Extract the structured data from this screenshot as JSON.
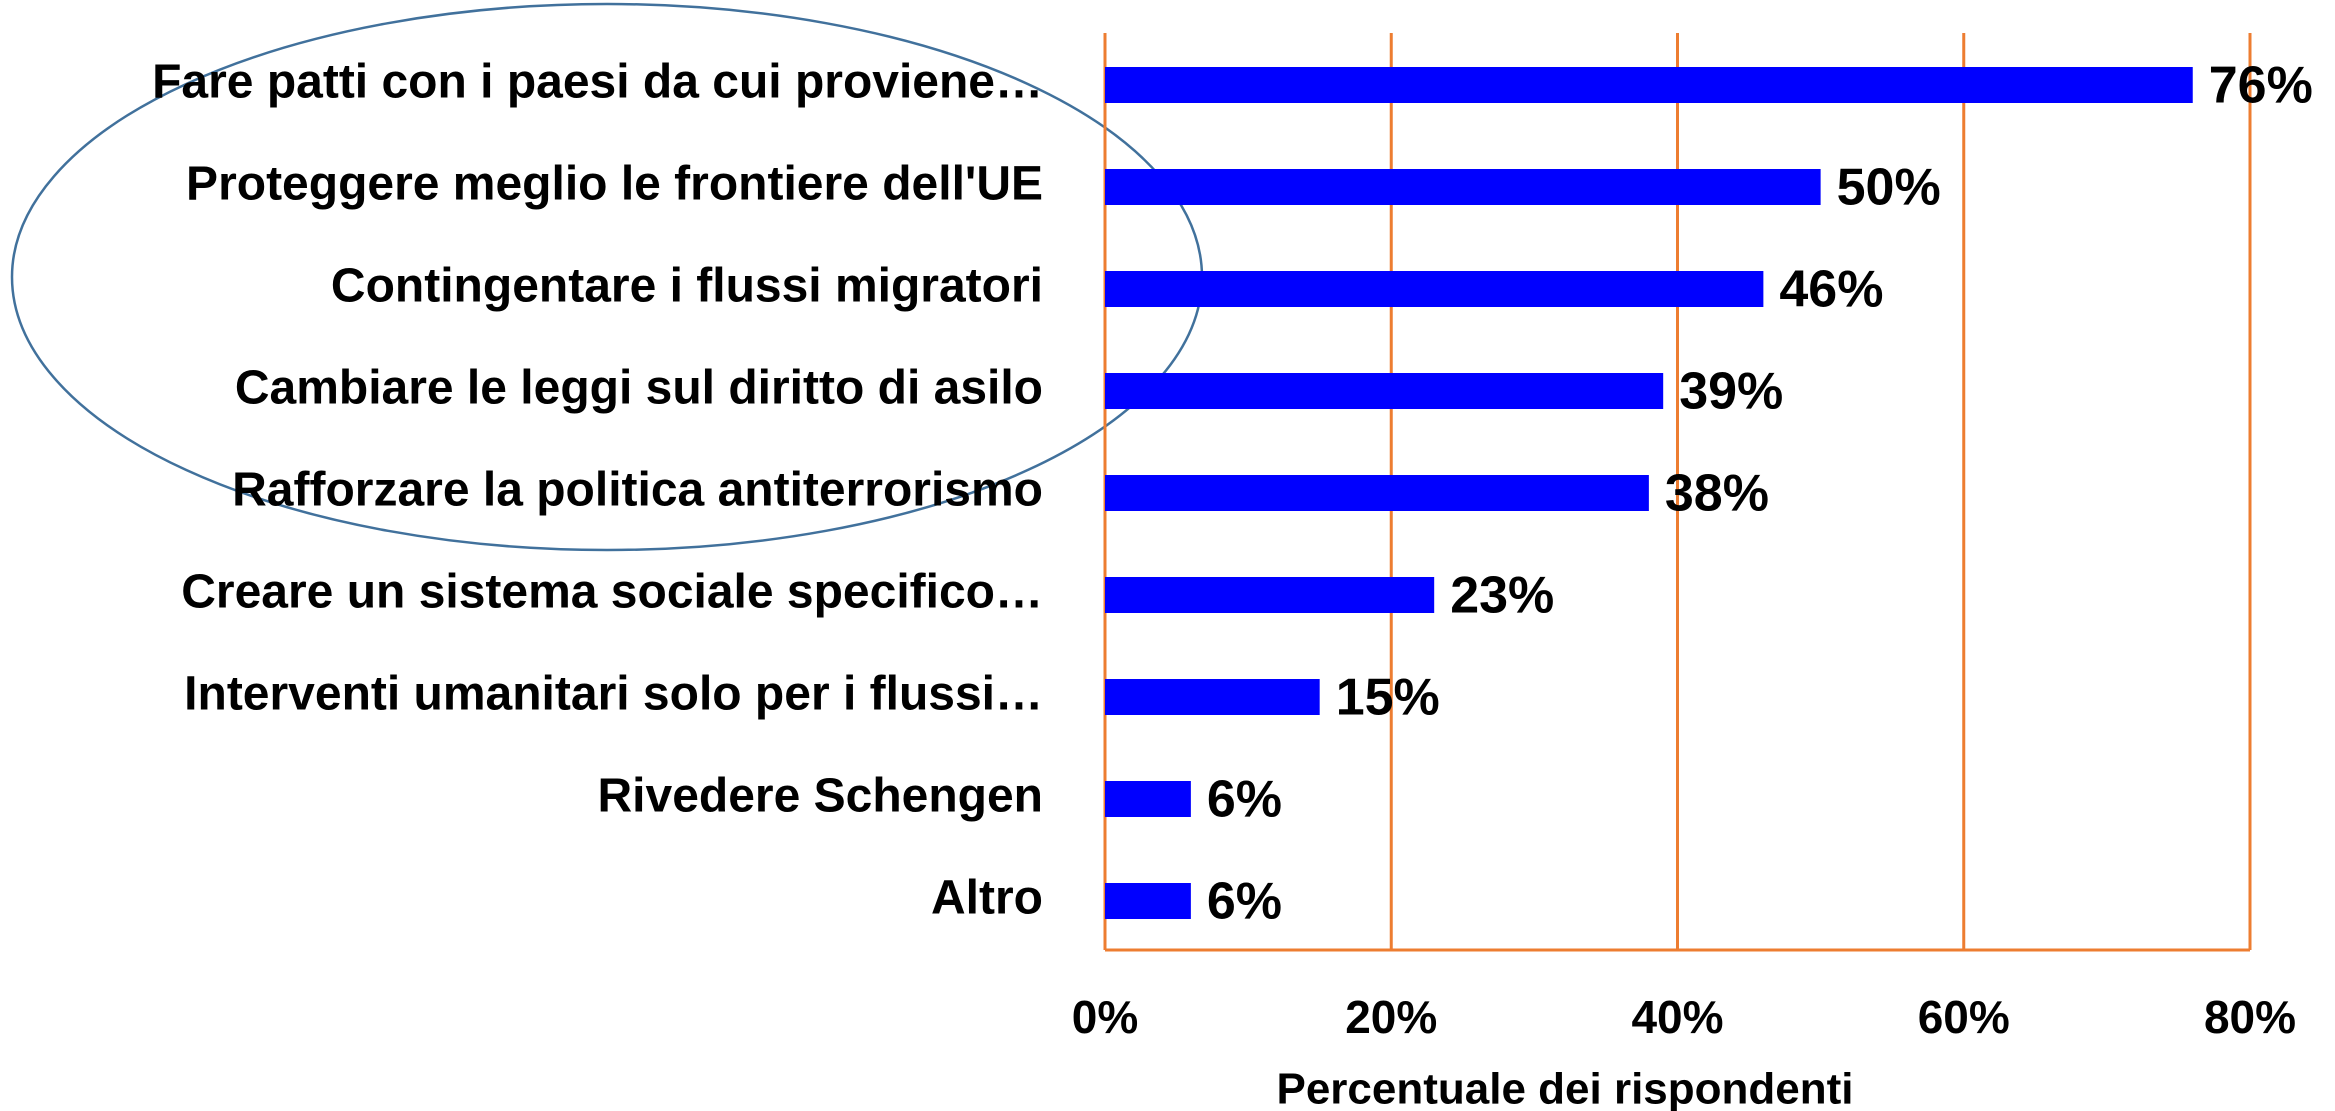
{
  "chart_data": {
    "type": "bar",
    "orientation": "horizontal",
    "categories": [
      "Fare patti con i paesi da cui proviene…",
      "Proteggere meglio le frontiere dell'UE",
      "Contingentare i flussi migratori",
      "Cambiare le leggi sul diritto di asilo",
      "Rafforzare la politica antiterrorismo",
      "Creare un sistema sociale specifico…",
      "Interventi umanitari solo per i flussi…",
      "Rivedere Schengen",
      "Altro"
    ],
    "values": [
      76,
      50,
      46,
      39,
      38,
      23,
      15,
      6,
      6
    ],
    "value_labels": [
      "76%",
      "50%",
      "46%",
      "39%",
      "38%",
      "23%",
      "15%",
      "6%",
      "6%"
    ],
    "color": "#0000ff",
    "xlim": [
      0,
      80
    ],
    "xticks": [
      {
        "value": 0,
        "label": "0%"
      },
      {
        "value": 20,
        "label": "20%"
      },
      {
        "value": 40,
        "label": "40%"
      },
      {
        "value": 60,
        "label": "60%"
      },
      {
        "value": 80,
        "label": "80%"
      }
    ],
    "x_label": "Percentuale dei rispondenti",
    "grid": true,
    "grid_color": "#ed7d31"
  }
}
